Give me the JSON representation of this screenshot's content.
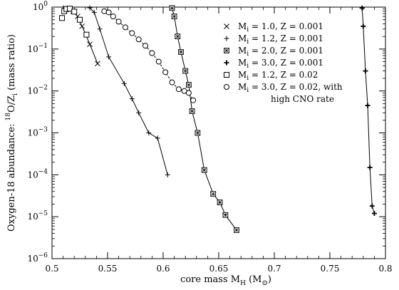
{
  "chart_data": {
    "type": "line",
    "title": "",
    "xlabel": "core mass  Mₕ  (M⊙)",
    "xlabel_parts": {
      "main": "core mass  M",
      "sub": "H",
      "unit": "(M",
      "unit_sym": "⊙",
      "unit_close": ")"
    },
    "ylabel": "Oxygen-18 abundance:  ¹⁸O/Zᵢ  (mass ratio)",
    "ylabel_parts": {
      "prefix": "Oxygen-18 abundance:  ",
      "sup": "18",
      "mid": "O/Z",
      "sub": "i",
      "suffix": "  (mass ratio)"
    },
    "xlim": [
      0.5,
      0.8
    ],
    "ylim": [
      1e-06,
      1
    ],
    "y_scale": "log",
    "x_ticks": [
      {
        "value": 0.5,
        "label": "0.5"
      },
      {
        "value": 0.55,
        "label": "0.55"
      },
      {
        "value": 0.6,
        "label": "0.6"
      },
      {
        "value": 0.65,
        "label": "0.65"
      },
      {
        "value": 0.7,
        "label": "0.7"
      },
      {
        "value": 0.75,
        "label": "0.75"
      },
      {
        "value": 0.8,
        "label": "0.8"
      }
    ],
    "y_ticks": [
      {
        "value": 1,
        "base": "10",
        "exp": "0"
      },
      {
        "value": 0.1,
        "base": "10",
        "exp": "−1"
      },
      {
        "value": 0.01,
        "base": "10",
        "exp": "−2"
      },
      {
        "value": 0.001,
        "base": "10",
        "exp": "−3"
      },
      {
        "value": 0.0001,
        "base": "10",
        "exp": "−4"
      },
      {
        "value": 1e-05,
        "base": "10",
        "exp": "−5"
      },
      {
        "value": 1e-06,
        "base": "10",
        "exp": "−6"
      }
    ],
    "grid": false,
    "legend_position": "top-right",
    "series": [
      {
        "name": "Mᵢ = 1.0, Z = 0.001",
        "legend_parts": {
          "pre": "M",
          "sub": "i",
          "post": " = 1.0, Z = 0.001"
        },
        "marker": "x",
        "line": "solid",
        "x": [
          0.512,
          0.515,
          0.519,
          0.523,
          0.527,
          0.534,
          0.541
        ],
        "y": [
          0.95,
          0.9,
          0.8,
          0.6,
          0.35,
          0.13,
          0.045
        ]
      },
      {
        "name": "Mᵢ = 1.2, Z = 0.001",
        "legend_parts": {
          "pre": "M",
          "sub": "i",
          "post": " = 1.2, Z = 0.001"
        },
        "marker": "plus",
        "line": "solid",
        "x": [
          0.534,
          0.538,
          0.543,
          0.551,
          0.565,
          0.572,
          0.578,
          0.587,
          0.595,
          0.604
        ],
        "y": [
          0.96,
          0.75,
          0.3,
          0.065,
          0.015,
          0.0065,
          0.003,
          0.001,
          0.00075,
          0.0001
        ]
      },
      {
        "name": "Mᵢ = 2.0, Z = 0.001",
        "legend_parts": {
          "pre": "M",
          "sub": "i",
          "post": " = 2.0, Z = 0.001"
        },
        "marker": "boxstar",
        "line": "solid",
        "x": [
          0.608,
          0.61,
          0.613,
          0.616,
          0.62,
          0.623,
          0.626,
          0.631,
          0.637,
          0.645,
          0.651,
          0.656,
          0.666
        ],
        "y": [
          0.95,
          0.6,
          0.2,
          0.085,
          0.03,
          0.014,
          0.0033,
          0.001,
          0.00013,
          3.5e-05,
          2.2e-05,
          1.1e-05,
          4.8e-06
        ]
      },
      {
        "name": "Mᵢ = 3.0, Z = 0.001",
        "legend_parts": {
          "pre": "M",
          "sub": "i",
          "post": " = 3.0, Z = 0.001"
        },
        "marker": "plus-bold",
        "line": "solid",
        "x": [
          0.779,
          0.78,
          0.782,
          0.784,
          0.786,
          0.788,
          0.79
        ],
        "y": [
          0.95,
          0.35,
          0.03,
          0.0045,
          0.00015,
          1.8e-05,
          1.2e-05
        ]
      },
      {
        "name": "Mᵢ = 1.2, Z = 0.02",
        "legend_parts": {
          "pre": "M",
          "sub": "i",
          "post": " = 1.2, Z = 0.02"
        },
        "marker": "square",
        "line": "none",
        "x": [
          0.509,
          0.511,
          0.513,
          0.516,
          0.52,
          0.525,
          0.531
        ],
        "y": [
          0.55,
          0.8,
          0.9,
          0.92,
          0.78,
          0.5,
          0.22
        ]
      },
      {
        "name": "Mᵢ = 3.0, Z = 0.02, with high CNO rate",
        "legend_parts": {
          "pre": "M",
          "sub": "i",
          "post": " = 3.0, Z = 0.02, with",
          "line2": "high CNO rate"
        },
        "marker": "circle",
        "line": "dashed",
        "x": [
          0.547,
          0.551,
          0.555,
          0.56,
          0.566,
          0.572,
          0.578,
          0.584,
          0.59,
          0.596,
          0.602,
          0.608,
          0.614,
          0.619,
          0.623,
          0.627
        ],
        "y": [
          0.8,
          0.75,
          0.6,
          0.45,
          0.33,
          0.24,
          0.17,
          0.12,
          0.08,
          0.05,
          0.028,
          0.016,
          0.011,
          0.01,
          0.009,
          0.006
        ]
      }
    ]
  }
}
